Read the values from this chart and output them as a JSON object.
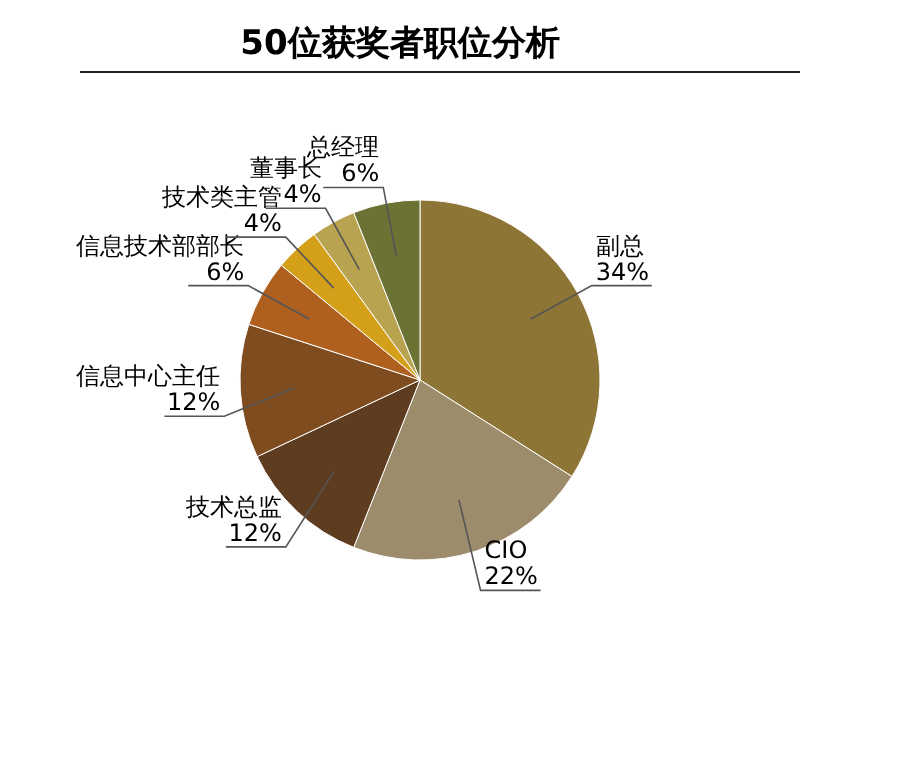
{
  "chart_data": {
    "type": "pie",
    "title": "50位获奖者职位分析",
    "categories": [
      "副总",
      "CIO",
      "技术总监",
      "信息中心主任",
      "信息技术部部长",
      "技术类主管",
      "董事长",
      "总经理"
    ],
    "values": [
      34,
      22,
      12,
      12,
      6,
      4,
      4,
      6
    ],
    "value_labels": [
      "34%",
      "22%",
      "12%",
      "12%",
      "6%",
      "4%",
      "4%",
      "6%"
    ],
    "colors": [
      "#8c7535",
      "#9c8c6c",
      "#5e3c20",
      "#7e4c1e",
      "#b0601e",
      "#d4a01a",
      "#b8a450",
      "#6b7233"
    ]
  }
}
